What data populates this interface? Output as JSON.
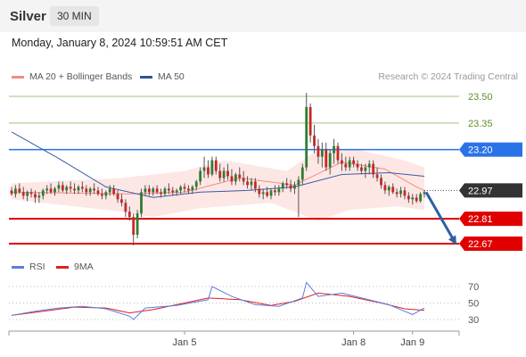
{
  "header": {
    "instrument": "Silver",
    "timeframe": "30 MIN"
  },
  "datetime": "Monday, January 8, 2024 10:59:51 AM CET",
  "legend": [
    {
      "label": "MA 20 + Bollinger Bands",
      "color": "#f28b82"
    },
    {
      "label": "MA 50",
      "color": "#2f5597"
    }
  ],
  "credit": "Research © 2024 Trading Central",
  "rsi_legend": [
    {
      "label": "RSI",
      "color": "#5b7fdb"
    },
    {
      "label": "9MA",
      "color": "#e02020"
    }
  ],
  "chart_data": {
    "type": "candlestick",
    "price_axis": {
      "min": 22.6,
      "max": 23.56
    },
    "levels": [
      {
        "value": 23.5,
        "label": "23.50",
        "style": "green-line",
        "color": "#9cc47a",
        "text_color": "#5f8f2a"
      },
      {
        "value": 23.35,
        "label": "23.35",
        "style": "green-line",
        "color": "#9cc47a",
        "text_color": "#5f8f2a"
      },
      {
        "value": 23.2,
        "label": "23.20",
        "style": "resistance",
        "color": "#2a72e8"
      },
      {
        "value": 22.97,
        "label": "22.97",
        "style": "current",
        "color": "#333333"
      },
      {
        "value": 22.81,
        "label": "22.81",
        "style": "support",
        "color": "#e00000"
      },
      {
        "value": 22.67,
        "label": "22.67",
        "style": "support",
        "color": "#e00000"
      }
    ],
    "x_labels": [
      "Jan 5",
      "Jan 8",
      "Jan 9"
    ],
    "x_label_index": [
      44,
      87,
      102
    ],
    "total_slots": 113,
    "forecast_arrow": {
      "from": 22.96,
      "to": 22.67,
      "color": "#2e5fa3"
    },
    "candles_ohlc": [
      [
        22.97,
        22.99,
        22.94,
        22.95
      ],
      [
        22.95,
        23.0,
        22.93,
        22.98
      ],
      [
        22.98,
        23.01,
        22.95,
        22.96
      ],
      [
        22.96,
        22.99,
        22.92,
        22.94
      ],
      [
        22.94,
        22.97,
        22.91,
        22.96
      ],
      [
        22.96,
        22.98,
        22.93,
        22.95
      ],
      [
        22.95,
        22.97,
        22.9,
        22.93
      ],
      [
        22.93,
        22.96,
        22.9,
        22.94
      ],
      [
        22.94,
        22.98,
        22.92,
        22.97
      ],
      [
        22.97,
        23.0,
        22.95,
        22.98
      ],
      [
        22.98,
        23.01,
        22.95,
        22.96
      ],
      [
        22.96,
        22.99,
        22.94,
        22.98
      ],
      [
        22.98,
        23.02,
        22.96,
        23.0
      ],
      [
        23.0,
        23.02,
        22.96,
        22.97
      ],
      [
        22.97,
        23.0,
        22.95,
        22.99
      ],
      [
        22.99,
        23.02,
        22.96,
        22.98
      ],
      [
        22.98,
        23.01,
        22.95,
        22.97
      ],
      [
        22.97,
        23.0,
        22.95,
        22.99
      ],
      [
        22.99,
        23.02,
        22.96,
        22.98
      ],
      [
        22.98,
        23.0,
        22.94,
        22.96
      ],
      [
        22.96,
        22.99,
        22.94,
        22.98
      ],
      [
        22.98,
        23.01,
        22.95,
        22.97
      ],
      [
        22.97,
        22.99,
        22.94,
        22.95
      ],
      [
        22.95,
        22.98,
        22.92,
        22.94
      ],
      [
        22.94,
        22.97,
        22.92,
        22.96
      ],
      [
        22.96,
        23.0,
        22.94,
        22.98
      ],
      [
        22.98,
        23.0,
        22.94,
        22.95
      ],
      [
        22.95,
        22.97,
        22.9,
        22.92
      ],
      [
        22.92,
        22.95,
        22.88,
        22.9
      ],
      [
        22.9,
        22.92,
        22.82,
        22.85
      ],
      [
        22.85,
        22.88,
        22.8,
        22.82
      ],
      [
        22.82,
        22.84,
        22.66,
        22.72
      ],
      [
        22.72,
        22.86,
        22.7,
        22.84
      ],
      [
        22.84,
        22.98,
        22.82,
        22.96
      ],
      [
        22.96,
        23.0,
        22.94,
        22.98
      ],
      [
        22.98,
        23.0,
        22.94,
        22.96
      ],
      [
        22.96,
        22.99,
        22.94,
        22.98
      ],
      [
        22.98,
        23.0,
        22.95,
        22.96
      ],
      [
        22.96,
        22.98,
        22.93,
        22.95
      ],
      [
        22.95,
        22.99,
        22.94,
        22.98
      ],
      [
        22.98,
        23.01,
        22.95,
        22.97
      ],
      [
        22.97,
        22.99,
        22.94,
        22.96
      ],
      [
        22.96,
        22.98,
        22.94,
        22.97
      ],
      [
        22.97,
        23.0,
        22.95,
        22.99
      ],
      [
        22.99,
        23.01,
        22.96,
        22.98
      ],
      [
        22.98,
        23.0,
        22.95,
        22.97
      ],
      [
        22.97,
        23.0,
        22.95,
        22.99
      ],
      [
        22.99,
        23.03,
        22.97,
        23.02
      ],
      [
        23.02,
        23.1,
        23.0,
        23.08
      ],
      [
        23.08,
        23.16,
        23.04,
        23.1
      ],
      [
        23.1,
        23.14,
        23.04,
        23.06
      ],
      [
        23.06,
        23.16,
        23.05,
        23.14
      ],
      [
        23.14,
        23.16,
        23.06,
        23.08
      ],
      [
        23.08,
        23.12,
        23.02,
        23.04
      ],
      [
        23.04,
        23.1,
        23.02,
        23.08
      ],
      [
        23.08,
        23.12,
        23.03,
        23.05
      ],
      [
        23.05,
        23.09,
        23.0,
        23.02
      ],
      [
        23.02,
        23.07,
        23.0,
        23.06
      ],
      [
        23.06,
        23.1,
        23.02,
        23.04
      ],
      [
        23.04,
        23.08,
        23.0,
        23.02
      ],
      [
        23.02,
        23.05,
        22.98,
        23.0
      ],
      [
        23.0,
        23.04,
        22.97,
        23.02
      ],
      [
        23.02,
        23.04,
        22.96,
        22.98
      ],
      [
        22.98,
        23.0,
        22.93,
        22.95
      ],
      [
        22.95,
        22.98,
        22.92,
        22.96
      ],
      [
        22.96,
        22.99,
        22.93,
        22.94
      ],
      [
        22.94,
        22.98,
        22.92,
        22.97
      ],
      [
        22.97,
        23.0,
        22.94,
        22.96
      ],
      [
        22.96,
        23.0,
        22.94,
        22.98
      ],
      [
        22.98,
        23.02,
        22.96,
        23.01
      ],
      [
        23.01,
        23.04,
        22.98,
        23.0
      ],
      [
        23.0,
        23.03,
        22.96,
        22.98
      ],
      [
        22.98,
        23.02,
        22.95,
        23.0
      ],
      [
        23.0,
        23.05,
        22.82,
        23.03
      ],
      [
        23.03,
        23.12,
        23.0,
        23.1
      ],
      [
        23.1,
        23.52,
        23.08,
        23.44
      ],
      [
        23.44,
        23.46,
        23.24,
        23.28
      ],
      [
        23.28,
        23.34,
        23.18,
        23.22
      ],
      [
        23.22,
        23.26,
        23.12,
        23.16
      ],
      [
        23.16,
        23.24,
        23.1,
        23.2
      ],
      [
        23.2,
        23.24,
        23.08,
        23.1
      ],
      [
        23.1,
        23.2,
        23.06,
        23.18
      ],
      [
        23.18,
        23.26,
        23.12,
        23.22
      ],
      [
        23.22,
        23.24,
        23.12,
        23.14
      ],
      [
        23.14,
        23.18,
        23.08,
        23.12
      ],
      [
        23.12,
        23.16,
        23.08,
        23.1
      ],
      [
        23.1,
        23.16,
        23.08,
        23.14
      ],
      [
        23.14,
        23.16,
        23.1,
        23.12
      ],
      [
        23.12,
        23.14,
        23.08,
        23.1
      ],
      [
        23.1,
        23.12,
        23.06,
        23.08
      ],
      [
        23.08,
        23.12,
        23.04,
        23.1
      ],
      [
        23.1,
        23.14,
        23.06,
        23.12
      ],
      [
        23.12,
        23.14,
        23.04,
        23.06
      ],
      [
        23.06,
        23.1,
        23.02,
        23.04
      ],
      [
        23.04,
        23.06,
        22.98,
        23.0
      ],
      [
        23.0,
        23.02,
        22.95,
        22.97
      ],
      [
        22.97,
        23.0,
        22.94,
        22.99
      ],
      [
        22.99,
        23.01,
        22.95,
        22.96
      ],
      [
        22.96,
        22.98,
        22.93,
        22.95
      ],
      [
        22.95,
        22.99,
        22.93,
        22.97
      ],
      [
        22.97,
        22.99,
        22.92,
        22.94
      ],
      [
        22.94,
        22.96,
        22.9,
        22.92
      ],
      [
        22.92,
        22.95,
        22.89,
        22.93
      ],
      [
        22.93,
        22.95,
        22.9,
        22.91
      ],
      [
        22.91,
        22.96,
        22.9,
        22.95
      ],
      [
        22.95,
        22.97,
        22.93,
        22.96
      ]
    ],
    "ma20_bollinger": {
      "middle": [
        [
          0,
          22.96
        ],
        [
          30,
          22.95
        ],
        [
          44,
          22.96
        ],
        [
          58,
          23.04
        ],
        [
          72,
          23.0
        ],
        [
          84,
          23.13
        ],
        [
          95,
          23.09
        ],
        [
          103,
          22.99
        ],
        [
          105,
          22.97
        ]
      ],
      "upper": [
        [
          0,
          23.01
        ],
        [
          28,
          23.04
        ],
        [
          44,
          23.08
        ],
        [
          54,
          23.14
        ],
        [
          70,
          23.08
        ],
        [
          78,
          23.2
        ],
        [
          88,
          23.2
        ],
        [
          100,
          23.14
        ],
        [
          105,
          23.1
        ]
      ],
      "lower": [
        [
          0,
          22.92
        ],
        [
          28,
          22.85
        ],
        [
          36,
          22.82
        ],
        [
          48,
          22.87
        ],
        [
          66,
          22.9
        ],
        [
          78,
          22.8
        ],
        [
          86,
          22.86
        ],
        [
          98,
          22.88
        ],
        [
          105,
          22.86
        ]
      ]
    },
    "ma50": [
      [
        0,
        23.3
      ],
      [
        12,
        23.15
      ],
      [
        24,
        22.99
      ],
      [
        36,
        22.93
      ],
      [
        48,
        22.96
      ],
      [
        60,
        22.97
      ],
      [
        72,
        22.99
      ],
      [
        84,
        23.06
      ],
      [
        96,
        23.07
      ],
      [
        105,
        23.05
      ]
    ],
    "rsi": {
      "axis": {
        "min": 20,
        "max": 80
      },
      "ticks": [
        70,
        50,
        30
      ],
      "rsi_points": [
        [
          0,
          35
        ],
        [
          6,
          40
        ],
        [
          12,
          44
        ],
        [
          18,
          46
        ],
        [
          24,
          43
        ],
        [
          30,
          34
        ],
        [
          31,
          30
        ],
        [
          34,
          44
        ],
        [
          42,
          47
        ],
        [
          50,
          54
        ],
        [
          51,
          70
        ],
        [
          56,
          58
        ],
        [
          62,
          48
        ],
        [
          68,
          46
        ],
        [
          74,
          56
        ],
        [
          75,
          75
        ],
        [
          78,
          58
        ],
        [
          84,
          62
        ],
        [
          90,
          55
        ],
        [
          96,
          48
        ],
        [
          100,
          40
        ],
        [
          102,
          36
        ],
        [
          105,
          44
        ]
      ],
      "ma_points": [
        [
          0,
          35
        ],
        [
          8,
          40
        ],
        [
          16,
          45
        ],
        [
          24,
          44
        ],
        [
          30,
          38
        ],
        [
          36,
          42
        ],
        [
          44,
          50
        ],
        [
          50,
          56
        ],
        [
          58,
          54
        ],
        [
          66,
          47
        ],
        [
          72,
          52
        ],
        [
          78,
          62
        ],
        [
          86,
          58
        ],
        [
          94,
          50
        ],
        [
          100,
          43
        ],
        [
          105,
          41
        ]
      ]
    }
  }
}
